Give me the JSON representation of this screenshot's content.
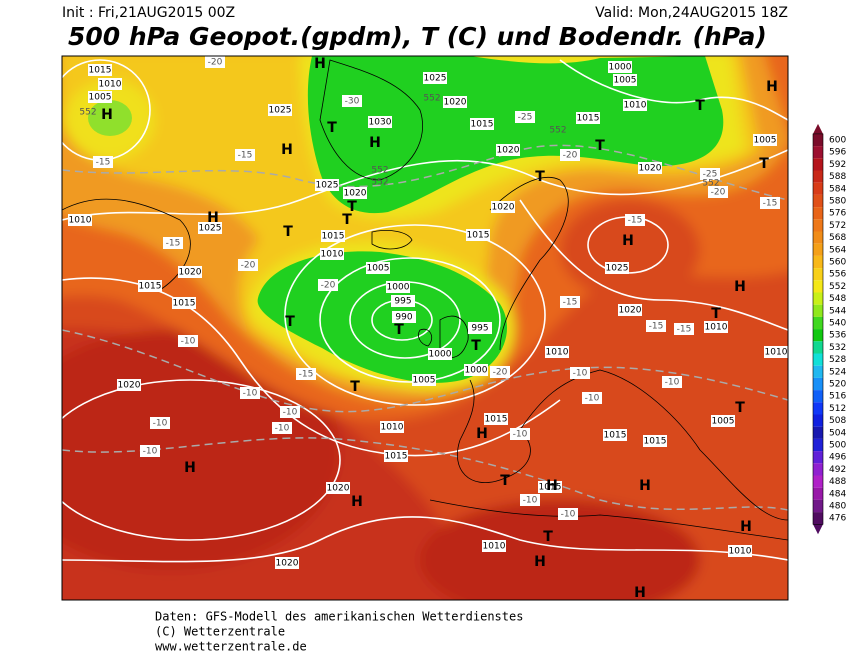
{
  "header": {
    "init": "Init : Fri,21AUG2015 00Z",
    "valid": "Valid: Mon,24AUG2015 18Z",
    "title": "500 hPa Geopot.(gpdm), T (C) und Bodendr. (hPa)"
  },
  "footer": {
    "line1": "Daten: GFS-Modell des amerikanischen Wetterdienstes",
    "line2": "(C) Wetterzentrale",
    "line3": "www.wetterzentrale.de"
  },
  "legend": {
    "levels": [
      600,
      596,
      592,
      588,
      584,
      580,
      576,
      572,
      568,
      564,
      560,
      556,
      552,
      548,
      544,
      540,
      536,
      532,
      528,
      524,
      520,
      516,
      512,
      508,
      504,
      500,
      496,
      492,
      488,
      484,
      480,
      476
    ],
    "colors": [
      "#7a0c2a",
      "#9c1030",
      "#b4141c",
      "#c82818",
      "#d83c18",
      "#e05018",
      "#e86418",
      "#ee7818",
      "#f08c18",
      "#f4a018",
      "#f8b818",
      "#f8d018",
      "#f4e818",
      "#c8f018",
      "#90e81c",
      "#40d820",
      "#10c810",
      "#10d890",
      "#10e0d8",
      "#20b8f0",
      "#1890f8",
      "#1060f8",
      "#1038f8",
      "#1020e0",
      "#1818b0",
      "#2020d8",
      "#6020d8",
      "#9020d0",
      "#b020c8",
      "#9818a8",
      "#701888",
      "#500c60"
    ]
  },
  "map": {
    "isobar_labels": [
      "1015",
      "1010",
      "1005",
      "1025",
      "1030",
      "1020",
      "1015",
      "1025",
      "1000",
      "1005",
      "1010",
      "1015",
      "1020",
      "1020",
      "1005",
      "1025",
      "1020",
      "1010",
      "1025",
      "1020",
      "1015",
      "1010",
      "1015",
      "1005",
      "1000",
      "995",
      "990",
      "995",
      "1000",
      "1000",
      "1005",
      "1020",
      "1015",
      "1015",
      "1025",
      "1020",
      "1010",
      "1010",
      "1010",
      "1020",
      "1015",
      "1010",
      "1015",
      "1015",
      "1015",
      "1005",
      "1020",
      "1015",
      "1010",
      "1020",
      "1010"
    ],
    "temp_labels": [
      "-20",
      "-30",
      "-25",
      "-20",
      "-15",
      "-15",
      "-15",
      "-20",
      "-20",
      "-15",
      "-15",
      "-15",
      "-15",
      "-10",
      "-15",
      "-10",
      "-10",
      "-10",
      "-10",
      "-10",
      "-10",
      "-10",
      "-10",
      "-10",
      "-20",
      "-15",
      "-10",
      "-10",
      "-25",
      "-20"
    ],
    "height_labels": [
      "552",
      "552",
      "552",
      "552",
      "552",
      "552"
    ],
    "centers": [
      "H",
      "H",
      "H",
      "T",
      "T",
      "T",
      "H",
      "T",
      "T",
      "T",
      "H",
      "T",
      "H",
      "T",
      "T",
      "T",
      "T",
      "T",
      "H",
      "T",
      "T",
      "H",
      "H",
      "H",
      "T",
      "H",
      "H",
      "T",
      "H",
      "H",
      "H",
      "H"
    ]
  }
}
